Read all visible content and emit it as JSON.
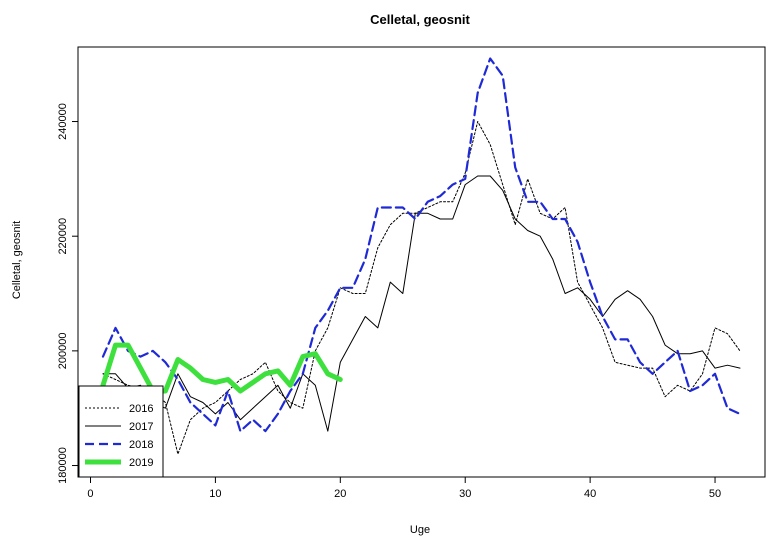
{
  "chart_data": {
    "type": "line",
    "title": "Celletal, geosnit",
    "xlabel": "Uge",
    "ylabel": "Celletal, geosnit",
    "xlim": [
      -1,
      54
    ],
    "ylim": [
      178000,
      253000
    ],
    "x_ticks": [
      0,
      10,
      20,
      30,
      40,
      50
    ],
    "y_ticks": [
      180000,
      200000,
      220000,
      240000
    ],
    "y_tick_labels": [
      "180000",
      "200000",
      "220000",
      "240000"
    ],
    "grid": false,
    "legend_position": "bottom-left",
    "series": [
      {
        "name": "2016",
        "style": "dotted",
        "color": "#000000",
        "x": [
          1,
          2,
          3,
          4,
          5,
          6,
          7,
          8,
          9,
          10,
          11,
          12,
          13,
          14,
          15,
          16,
          17,
          18,
          19,
          20,
          21,
          22,
          23,
          24,
          25,
          26,
          27,
          28,
          29,
          30,
          31,
          32,
          33,
          34,
          35,
          36,
          37,
          38,
          39,
          40,
          41,
          42,
          43,
          44,
          45,
          46,
          47,
          48,
          49,
          50,
          51,
          52
        ],
        "y": [
          196000,
          195000,
          194000,
          193500,
          193000,
          191000,
          182000,
          188000,
          190000,
          191000,
          193000,
          195000,
          196000,
          198000,
          193000,
          191000,
          190000,
          200000,
          204000,
          211000,
          210000,
          210000,
          218000,
          222000,
          224000,
          224000,
          225000,
          226000,
          226000,
          231000,
          240000,
          236000,
          229000,
          222000,
          230000,
          224000,
          223000,
          225000,
          212000,
          208000,
          204000,
          198000,
          197500,
          197000,
          197000,
          192000,
          194000,
          193000,
          196000,
          204000,
          203000,
          200000
        ]
      },
      {
        "name": "2017",
        "style": "solid",
        "color": "#000000",
        "x": [
          1,
          2,
          3,
          4,
          5,
          6,
          7,
          8,
          9,
          10,
          11,
          12,
          13,
          14,
          15,
          16,
          17,
          18,
          19,
          20,
          21,
          22,
          23,
          24,
          25,
          26,
          27,
          28,
          29,
          30,
          31,
          32,
          33,
          34,
          35,
          36,
          37,
          38,
          39,
          40,
          41,
          42,
          43,
          44,
          45,
          46,
          47,
          48,
          49,
          50,
          51,
          52
        ],
        "y": [
          196000,
          196000,
          193500,
          194000,
          191000,
          190000,
          196000,
          192000,
          191000,
          189000,
          191000,
          188000,
          190000,
          192000,
          194000,
          190000,
          196000,
          194000,
          186000,
          198000,
          202000,
          206000,
          204000,
          212000,
          210000,
          224000,
          224000,
          223000,
          223000,
          229000,
          230500,
          230500,
          228000,
          223000,
          221000,
          220000,
          216000,
          210000,
          211000,
          209000,
          206000,
          209000,
          210500,
          209000,
          206000,
          201000,
          199500,
          199500,
          200000,
          197000,
          197500,
          197000
        ]
      },
      {
        "name": "2018",
        "style": "dashed",
        "color": "#1f2ad6",
        "x": [
          1,
          2,
          3,
          4,
          5,
          6,
          7,
          8,
          9,
          10,
          11,
          12,
          13,
          14,
          15,
          16,
          17,
          18,
          19,
          20,
          21,
          22,
          23,
          24,
          25,
          26,
          27,
          28,
          29,
          30,
          31,
          32,
          33,
          34,
          35,
          36,
          37,
          38,
          39,
          40,
          41,
          42,
          43,
          44,
          45,
          46,
          47,
          48,
          49,
          50,
          51,
          52
        ],
        "y": [
          199000,
          204000,
          200000,
          199000,
          200000,
          198000,
          195000,
          191000,
          189000,
          187000,
          193000,
          186000,
          188000,
          186000,
          189000,
          193000,
          196000,
          204000,
          207000,
          211000,
          211000,
          216000,
          225000,
          225000,
          225000,
          223000,
          226000,
          227000,
          229000,
          230000,
          245000,
          251000,
          248000,
          232000,
          226000,
          226000,
          223000,
          223000,
          219000,
          212000,
          206000,
          202000,
          202000,
          198000,
          196000,
          198000,
          200000,
          193000,
          194000,
          196000,
          190000,
          189000
        ]
      },
      {
        "name": "2019",
        "style": "solid-thick",
        "color": "#3ee03e",
        "x": [
          1,
          2,
          3,
          4,
          5,
          6,
          7,
          8,
          9,
          10,
          11,
          12,
          13,
          14,
          15,
          16,
          17,
          18,
          19,
          20
        ],
        "y": [
          194000,
          201000,
          201000,
          197000,
          193000,
          193000,
          198500,
          197000,
          195000,
          194500,
          195000,
          193000,
          194500,
          196000,
          196500,
          194000,
          199000,
          199500,
          196000,
          195000
        ]
      }
    ]
  }
}
